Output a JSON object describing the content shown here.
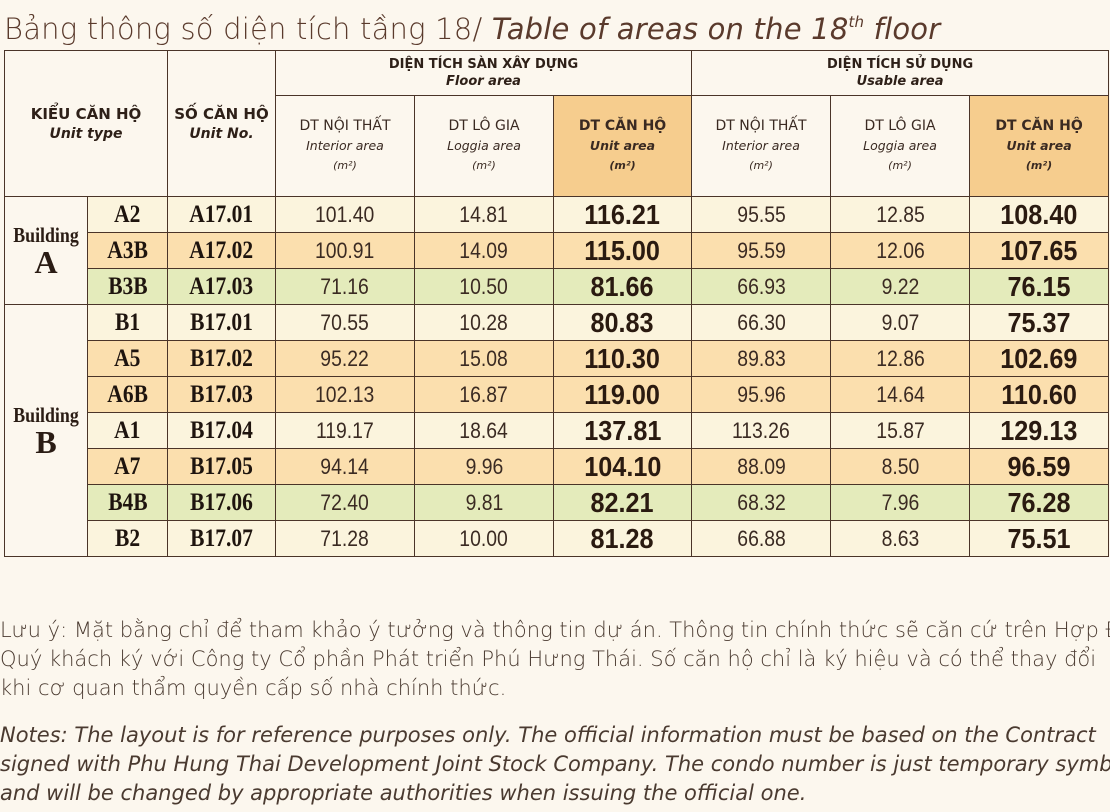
{
  "title": {
    "vi": "Bảng thông số diện tích tầng 18/ ",
    "en_prefix": "Table of areas on the 18",
    "en_sup": "th",
    "en_suffix": " floor"
  },
  "header": {
    "unit_type": {
      "vi": "KIỂU CĂN HỘ",
      "en": "Unit type"
    },
    "unit_no": {
      "vi": "SỐ CĂN HỘ",
      "en": "Unit No."
    },
    "floor_area": {
      "vi": "DIỆN TÍCH SÀN XÂY DỰNG",
      "en": "Floor area"
    },
    "usable_area": {
      "vi": "DIỆN TÍCH SỬ DỤNG",
      "en": "Usable area"
    },
    "interior": {
      "vi": "DT NỘI THẤT",
      "en": "Interior area",
      "unit": "(m²)"
    },
    "loggia": {
      "vi": "DT LÔ GIA",
      "en": "Loggia area",
      "unit": "(m²)"
    },
    "unit_area": {
      "vi": "DT CĂN HỘ",
      "en": "Unit area",
      "unit": "(m²)"
    }
  },
  "buildings": [
    {
      "word": "Building",
      "letter": "A"
    },
    {
      "word": "Building",
      "letter": "B"
    }
  ],
  "rows": [
    {
      "type": "A2",
      "no": "A17.01",
      "fi": "101.40",
      "fl": "14.81",
      "fu": "116.21",
      "ui": "95.55",
      "ul": "12.85",
      "uu": "108.40"
    },
    {
      "type": "A3B",
      "no": "A17.02",
      "fi": "100.91",
      "fl": "14.09",
      "fu": "115.00",
      "ui": "95.59",
      "ul": "12.06",
      "uu": "107.65"
    },
    {
      "type": "B3B",
      "no": "A17.03",
      "fi": "71.16",
      "fl": "10.50",
      "fu": "81.66",
      "ui": "66.93",
      "ul": "9.22",
      "uu": "76.15"
    },
    {
      "type": "B1",
      "no": "B17.01",
      "fi": "70.55",
      "fl": "10.28",
      "fu": "80.83",
      "ui": "66.30",
      "ul": "9.07",
      "uu": "75.37"
    },
    {
      "type": "A5",
      "no": "B17.02",
      "fi": "95.22",
      "fl": "15.08",
      "fu": "110.30",
      "ui": "89.83",
      "ul": "12.86",
      "uu": "102.69"
    },
    {
      "type": "A6B",
      "no": "B17.03",
      "fi": "102.13",
      "fl": "16.87",
      "fu": "119.00",
      "ui": "95.96",
      "ul": "14.64",
      "uu": "110.60"
    },
    {
      "type": "A1",
      "no": "B17.04",
      "fi": "119.17",
      "fl": "18.64",
      "fu": "137.81",
      "ui": "113.26",
      "ul": "15.87",
      "uu": "129.13"
    },
    {
      "type": "A7",
      "no": "B17.05",
      "fi": "94.14",
      "fl": "9.96",
      "fu": "104.10",
      "ui": "88.09",
      "ul": "8.50",
      "uu": "96.59"
    },
    {
      "type": "B4B",
      "no": "B17.06",
      "fi": "72.40",
      "fl": "9.81",
      "fu": "82.21",
      "ui": "68.32",
      "ul": "7.96",
      "uu": "76.28"
    },
    {
      "type": "B2",
      "no": "B17.07",
      "fi": "71.28",
      "fl": "10.00",
      "fu": "81.28",
      "ui": "66.88",
      "ul": "8.63",
      "uu": "75.51"
    }
  ],
  "row_colors": {
    "lite": "#fbf4dd",
    "orange": "#fbdfae",
    "green": "#e4ebbb",
    "header_highlight": "#f6cd8e"
  },
  "notes": {
    "vi": [
      "Lưu ý: Mặt bằng chỉ để tham khảo ý tưởng và thông tin dự án. Thông tin chính thức sẽ căn cứ trên Hợp Đồng",
      "Quý khách ký với Công ty Cổ phần Phát triển Phú Hưng Thái. Số căn hộ chỉ là ký hiệu và có thể thay đổi",
      "khi cơ quan thẩm quyền cấp số nhà chính thức."
    ],
    "en": [
      "Notes: The layout is for reference purposes only. The official information must be based on the Contract",
      "signed with Phu Hung Thai Development Joint Stock Company. The condo number is just temporary symbol",
      "and will be changed by appropriate authorities when issuing the official one."
    ]
  }
}
